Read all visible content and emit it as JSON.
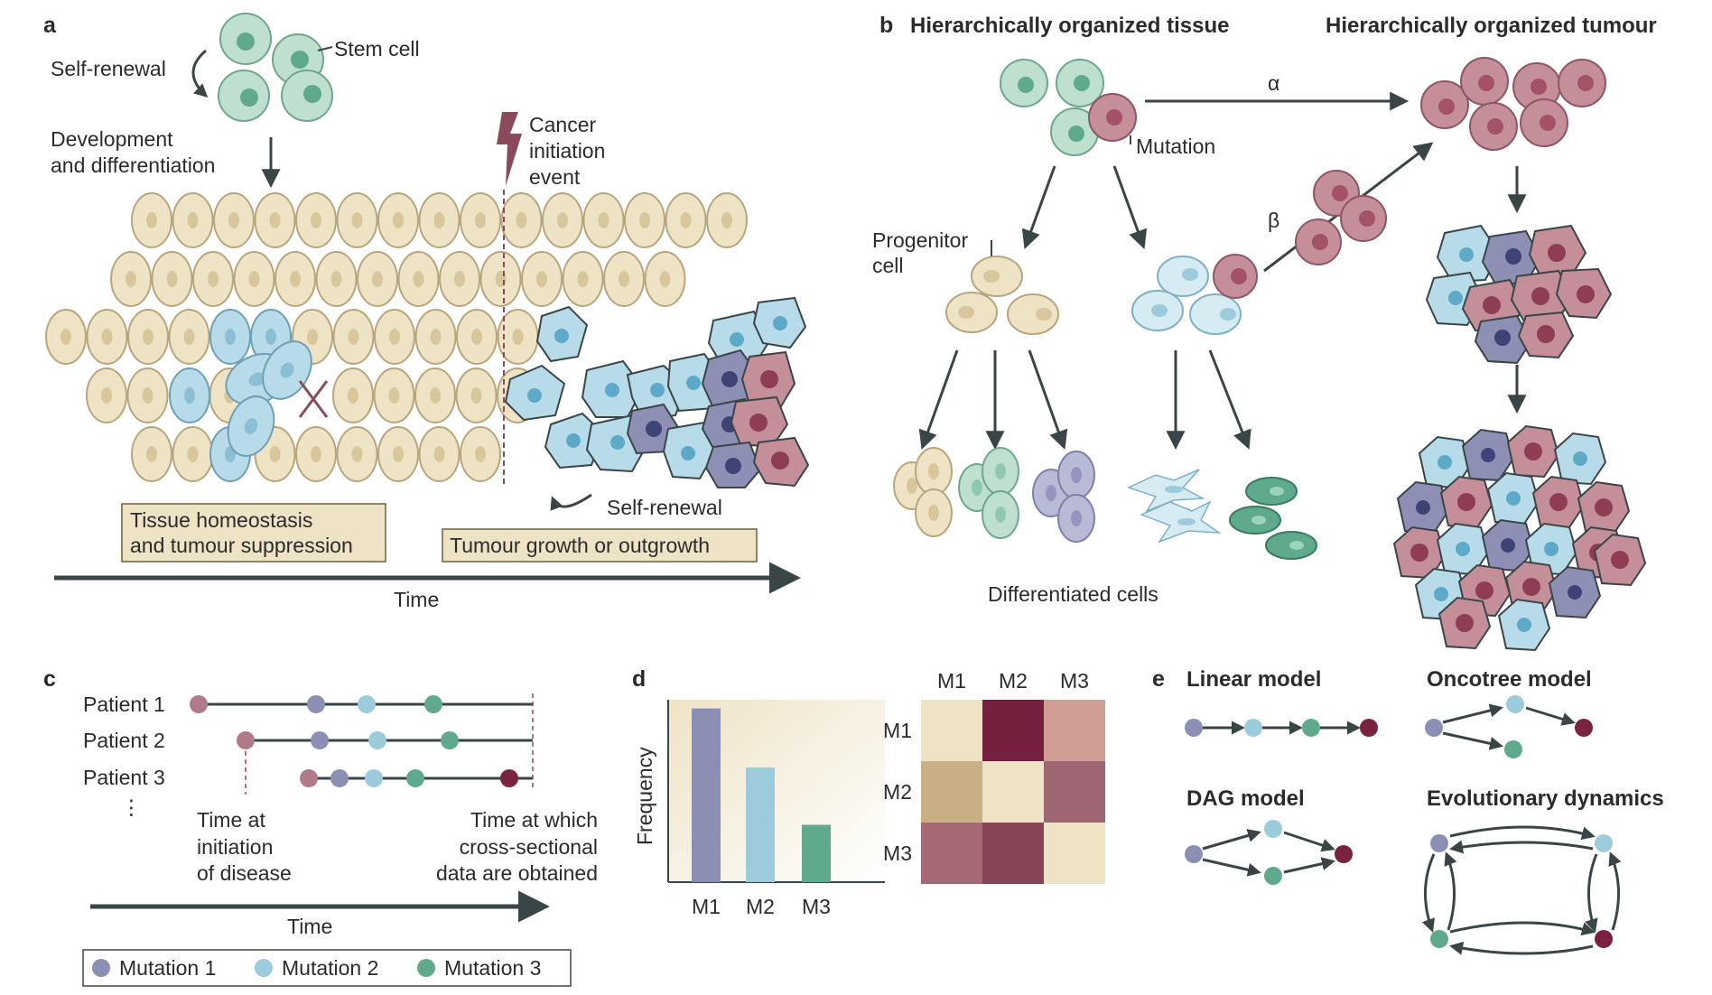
{
  "colors": {
    "tissue": "#efe3c6",
    "tissue_stroke": "#b7a57c",
    "stem": "#bfe0cf",
    "blue_cell": "#b7dbe8",
    "pink_cell": "#c48f98",
    "purple_cell": "#8d90b4",
    "mut1": "#8a8fb3",
    "mut2": "#9ccbdc",
    "mut3": "#5fa98c",
    "mut4": "#7a2340",
    "dark": "#3a4548"
  },
  "panel_a": {
    "letter": "a",
    "self_renewal": "Self-renewal",
    "stem_cell": "Stem cell",
    "development": [
      "Development",
      "and differentiation"
    ],
    "cancer_event": [
      "Cancer",
      "initiation",
      "event"
    ],
    "box1": [
      "Tissue homeostasis",
      "and tumour suppression"
    ],
    "box2": "Tumour growth or outgrowth",
    "self_renewal_2": "Self-renewal",
    "time": "Time"
  },
  "panel_b": {
    "letter": "b",
    "title_tissue": "Hierarchically organized tissue",
    "title_tumour": "Hierarchically organized tumour",
    "mutation": "Mutation",
    "progenitor": [
      "Progenitor",
      "cell"
    ],
    "alpha": "α",
    "beta": "β",
    "differentiated": "Differentiated cells"
  },
  "panel_c": {
    "letter": "c",
    "patients": [
      "Patient 1",
      "Patient 2",
      "Patient 3"
    ],
    "ellipsis": "⋮",
    "initiation": [
      "Time at",
      "initiation",
      "of disease"
    ],
    "cross_sectional": [
      "Time at which",
      "cross-sectional",
      "data are obtained"
    ],
    "time": "Time",
    "legend": [
      "Mutation 1",
      "Mutation 2",
      "Mutation 3"
    ]
  },
  "panel_d": {
    "letter": "d",
    "ylabel": "Frequency",
    "heatmap_labels": [
      "M1",
      "M2",
      "M3"
    ]
  },
  "panel_e": {
    "letter": "e",
    "linear": "Linear model",
    "oncotree": "Oncotree model",
    "dag": "DAG model",
    "evolutionary": "Evolutionary dynamics"
  },
  "chart_data": {
    "type": "bar",
    "categories": [
      "M1",
      "M2",
      "M3"
    ],
    "values": [
      1.0,
      0.66,
      0.33
    ],
    "ylabel": "Frequency",
    "ylim": [
      0,
      1.05
    ]
  },
  "heatmap_data": {
    "type": "heatmap",
    "rows": [
      "M1",
      "M2",
      "M3"
    ],
    "cols": [
      "M1",
      "M2",
      "M3"
    ],
    "colors": [
      [
        "#efe3c6",
        "#741f3d",
        "#cf9f96"
      ],
      [
        "#c8b084",
        "#efe3c6",
        "#9e6672"
      ],
      [
        "#a56874",
        "#864454",
        "#efe3c6"
      ]
    ]
  }
}
